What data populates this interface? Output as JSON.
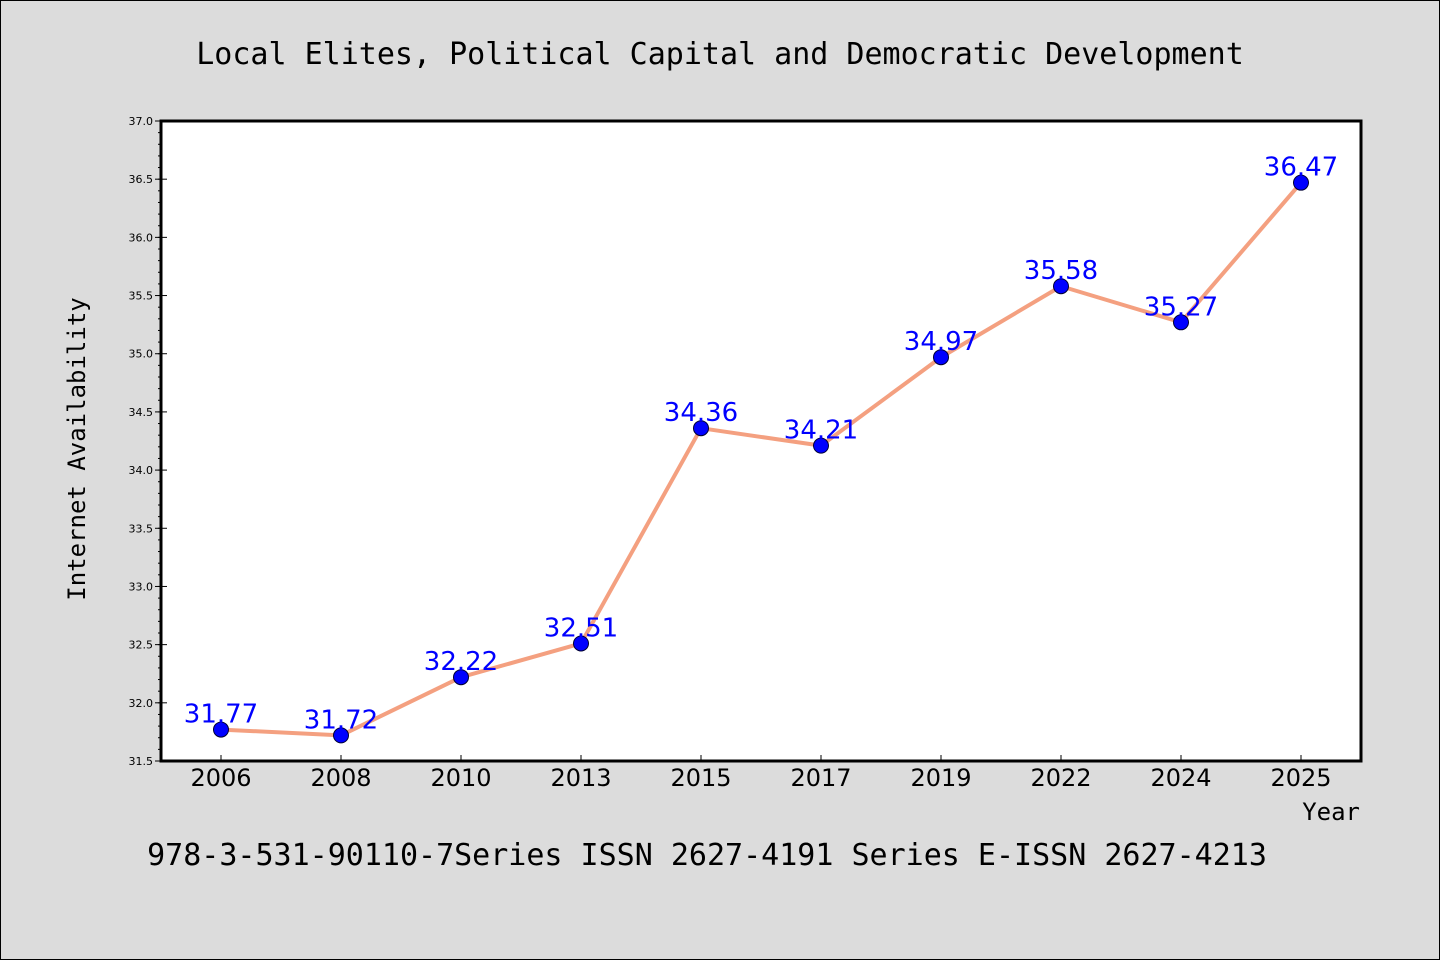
{
  "chart_data": {
    "type": "line",
    "title": "Local Elites, Political Capital and Democratic Development",
    "xlabel": "Year",
    "ylabel": "Internet Availability",
    "footer": "978-3-531-90110-7Series ISSN 2627-4191 Series E-ISSN 2627-4213",
    "categories": [
      "2006",
      "2008",
      "2010",
      "2013",
      "2015",
      "2017",
      "2019",
      "2022",
      "2024",
      "2025"
    ],
    "series": [
      {
        "values": [
          31.77,
          31.72,
          32.22,
          32.51,
          34.36,
          34.21,
          34.97,
          35.58,
          35.27,
          36.47
        ],
        "labels": [
          "31.77",
          "31.72",
          "32.22",
          "32.51",
          "34.36",
          "34.21",
          "34.97",
          "35.58",
          "35.27",
          "36.47"
        ],
        "line_color": "#f4a080",
        "marker_color": "#0000ff"
      }
    ],
    "ylim": [
      31.5,
      37.0
    ],
    "yticks": [
      "31.5",
      "32.0",
      "32.5",
      "33.0",
      "33.5",
      "34.0",
      "34.5",
      "35.0",
      "35.5",
      "36.0",
      "36.5",
      "37.0"
    ],
    "grid": false,
    "colors": {
      "background": "#dcdcdc",
      "plot_background": "#ffffff",
      "label_color": "#0000ff"
    }
  }
}
